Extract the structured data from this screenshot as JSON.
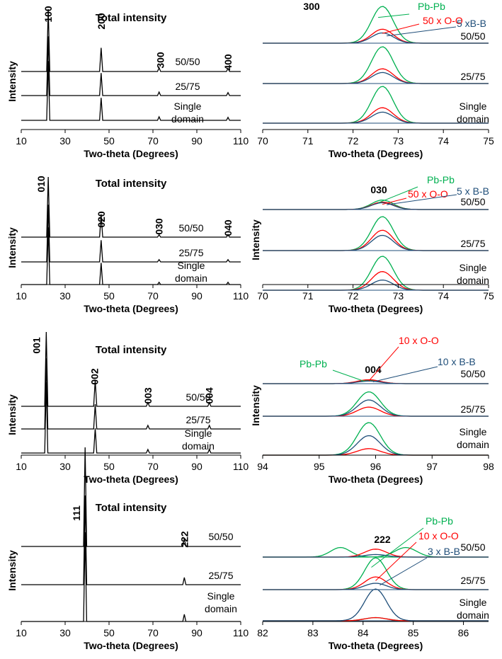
{
  "chart_data": [
    {
      "type": "line",
      "panel": "total-100",
      "title": "Total intensity",
      "xlabel": "Two-theta (Degrees)",
      "ylabel": "Intensity",
      "xlim": [
        10,
        110
      ],
      "xticks": [
        10,
        30,
        50,
        70,
        90,
        110
      ],
      "series": [
        {
          "name": "50/50",
          "label_lines": [
            "50/50"
          ]
        },
        {
          "name": "25/75",
          "label_lines": [
            "25/75"
          ]
        },
        {
          "name": "Single domain",
          "label_lines": [
            "Single",
            "domain"
          ]
        }
      ],
      "peaks": [
        {
          "label": "100",
          "x": 22.3,
          "height": 1.0
        },
        {
          "label": "200",
          "x": 46.4,
          "height": 0.38
        },
        {
          "label": "300",
          "x": 72.8,
          "height": 0.06
        },
        {
          "label": "400",
          "x": 104.2,
          "height": 0.05
        }
      ]
    },
    {
      "type": "line",
      "panel": "detail-300",
      "title": "300",
      "xlabel": "Two-theta (Degrees)",
      "ylabel": "",
      "xlim": [
        70,
        75
      ],
      "xticks": [
        70,
        71,
        72,
        73,
        74,
        75
      ],
      "center": 72.65,
      "series": [
        {
          "name": "50/50",
          "label_lines": [
            "50/50"
          ]
        },
        {
          "name": "25/75",
          "label_lines": [
            "25/75"
          ]
        },
        {
          "name": "Single domain",
          "label_lines": [
            "Single",
            "domain"
          ]
        }
      ],
      "components": [
        {
          "name": "Pb-Pb",
          "color": "#00b050",
          "heights": [
            1.0,
            1.0,
            1.0
          ]
        },
        {
          "name": "50 x O-O",
          "color": "#ff0000",
          "heights": [
            0.38,
            0.4,
            0.42
          ]
        },
        {
          "name": "5 xB-B",
          "color": "#1f4e79",
          "heights": [
            0.28,
            0.3,
            0.3
          ]
        }
      ]
    },
    {
      "type": "line",
      "panel": "total-010",
      "title": "Total intensity",
      "xlabel": "Two-theta (Degrees)",
      "ylabel": "Intensity",
      "xlim": [
        10,
        110
      ],
      "xticks": [
        10,
        30,
        50,
        70,
        90,
        110
      ],
      "series": [
        {
          "name": "50/50",
          "label_lines": [
            "50/50"
          ]
        },
        {
          "name": "25/75",
          "label_lines": [
            "25/75"
          ]
        },
        {
          "name": "Single domain",
          "label_lines": [
            "Single",
            "domain"
          ]
        }
      ],
      "peaks": [
        {
          "label": "010",
          "x": 22.3,
          "height": 1.0
        },
        {
          "label": "020",
          "x": 46.4,
          "height": 0.38
        },
        {
          "label": "030",
          "x": 72.8,
          "height": 0.04
        },
        {
          "label": "040",
          "x": 104.2,
          "height": 0.04
        }
      ]
    },
    {
      "type": "line",
      "panel": "detail-030",
      "title": "030",
      "xlabel": "Two-theta (Degrees)",
      "ylabel": "Intensity",
      "xlim": [
        70,
        75
      ],
      "xticks": [
        70,
        71,
        72,
        73,
        74,
        75
      ],
      "center": 72.65,
      "series": [
        {
          "name": "50/50",
          "label_lines": [
            "50/50"
          ]
        },
        {
          "name": "25/75",
          "label_lines": [
            "25/75"
          ]
        },
        {
          "name": "Single domain",
          "label_lines": [
            "Single",
            "domain"
          ]
        }
      ],
      "components": [
        {
          "name": "Pb-Pb",
          "color": "#00b050",
          "heights": [
            0.28,
            1.0,
            1.0
          ]
        },
        {
          "name": "50 x O-O",
          "color": "#ff0000",
          "heights": [
            0.22,
            0.6,
            0.55
          ]
        },
        {
          "name": "5 x B-B",
          "color": "#1f4e79",
          "heights": [
            0.2,
            0.45,
            0.3
          ]
        }
      ]
    },
    {
      "type": "line",
      "panel": "total-001",
      "title": "Total intensity",
      "xlabel": "Two-theta (Degrees)",
      "ylabel": "Intensity",
      "xlim": [
        10,
        110
      ],
      "xticks": [
        10,
        30,
        50,
        70,
        90,
        110
      ],
      "series": [
        {
          "name": "50/50",
          "label_lines": [
            "50/50"
          ]
        },
        {
          "name": "25/75",
          "label_lines": [
            "25/75"
          ]
        },
        {
          "name": "Single domain",
          "label_lines": [
            "Single",
            "domain"
          ]
        }
      ],
      "peaks": [
        {
          "label": "001",
          "x": 21.4,
          "height": 1.0
        },
        {
          "label": "002",
          "x": 43.7,
          "height": 0.35
        },
        {
          "label": "003",
          "x": 67.7,
          "height": 0.05
        },
        {
          "label": "004",
          "x": 95.7,
          "height": 0.05
        }
      ]
    },
    {
      "type": "line",
      "panel": "detail-004",
      "title": "004",
      "xlabel": "Two-theta (Degrees)",
      "ylabel": "Intensity",
      "xlim": [
        94,
        98
      ],
      "xticks": [
        94,
        95,
        96,
        97,
        98
      ],
      "center": 95.88,
      "series": [
        {
          "name": "50/50",
          "label_lines": [
            "50/50"
          ]
        },
        {
          "name": "25/75",
          "label_lines": [
            "25/75"
          ]
        },
        {
          "name": "Single domain",
          "label_lines": [
            "Single",
            "domain"
          ]
        }
      ],
      "components": [
        {
          "name": "Pb-Pb",
          "color": "#00b050",
          "heights": [
            0.1,
            0.75,
            1.0
          ]
        },
        {
          "name": "10 x O-O",
          "color": "#ff0000",
          "heights": [
            0.12,
            0.28,
            0.2
          ]
        },
        {
          "name": "10 x B-B",
          "color": "#1f4e79",
          "heights": [
            0.08,
            0.5,
            0.6
          ]
        }
      ]
    },
    {
      "type": "line",
      "panel": "total-111",
      "title": "Total intensity",
      "xlabel": "Two-theta (Degrees)",
      "ylabel": "Intensity",
      "xlim": [
        10,
        110
      ],
      "xticks": [
        10,
        30,
        50,
        70,
        90,
        110
      ],
      "series": [
        {
          "name": "50/50",
          "label_lines": [
            "50/50"
          ]
        },
        {
          "name": "25/75",
          "label_lines": [
            "25/75"
          ]
        },
        {
          "name": "Single domain",
          "label_lines": [
            "Single",
            "domain"
          ]
        }
      ],
      "peaks": [
        {
          "label": "111",
          "x": 39.1,
          "height": 1.0
        },
        {
          "label": "222",
          "x": 84.3,
          "height": 0.08
        }
      ]
    },
    {
      "type": "line",
      "panel": "detail-222",
      "title": "222",
      "xlabel": "Two-theta (Degrees)",
      "ylabel": "",
      "xlim": [
        82,
        86.5
      ],
      "xticks": [
        82,
        83,
        84,
        85,
        86
      ],
      "center": 84.25,
      "series": [
        {
          "name": "50/50",
          "label_lines": [
            "50/50"
          ]
        },
        {
          "name": "25/75",
          "label_lines": [
            "25/75"
          ]
        },
        {
          "name": "Single domain",
          "label_lines": [
            "Single",
            "domain"
          ]
        }
      ],
      "components": [
        {
          "name": "Pb-Pb",
          "color": "#00b050",
          "heights": [
            0.3,
            1.0,
            0.1
          ]
        },
        {
          "name": "10 x O-O",
          "color": "#ff0000",
          "heights": [
            0.25,
            0.4,
            0.1
          ]
        },
        {
          "name": "3 x B-B",
          "color": "#1f4e79",
          "heights": [
            0.08,
            0.2,
            1.0
          ]
        }
      ]
    }
  ]
}
